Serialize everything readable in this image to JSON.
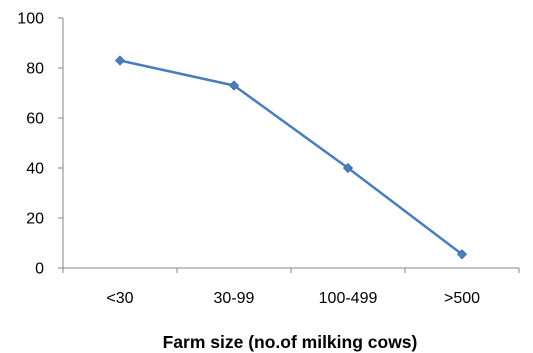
{
  "chart_data": {
    "type": "line",
    "categories": [
      "<30",
      "30-99",
      "100-499",
      ">500"
    ],
    "values": [
      83,
      73,
      40,
      5.5
    ],
    "xlabel": "Farm size (no.of milking cows)",
    "ylabel": "",
    "ylim": [
      0,
      100
    ],
    "yticks": [
      0,
      20,
      40,
      60,
      80,
      100
    ],
    "grid": false,
    "legend": "none",
    "line_color": "#4a7ebb",
    "marker_color": "#4a7ebb",
    "marker": "diamond"
  }
}
